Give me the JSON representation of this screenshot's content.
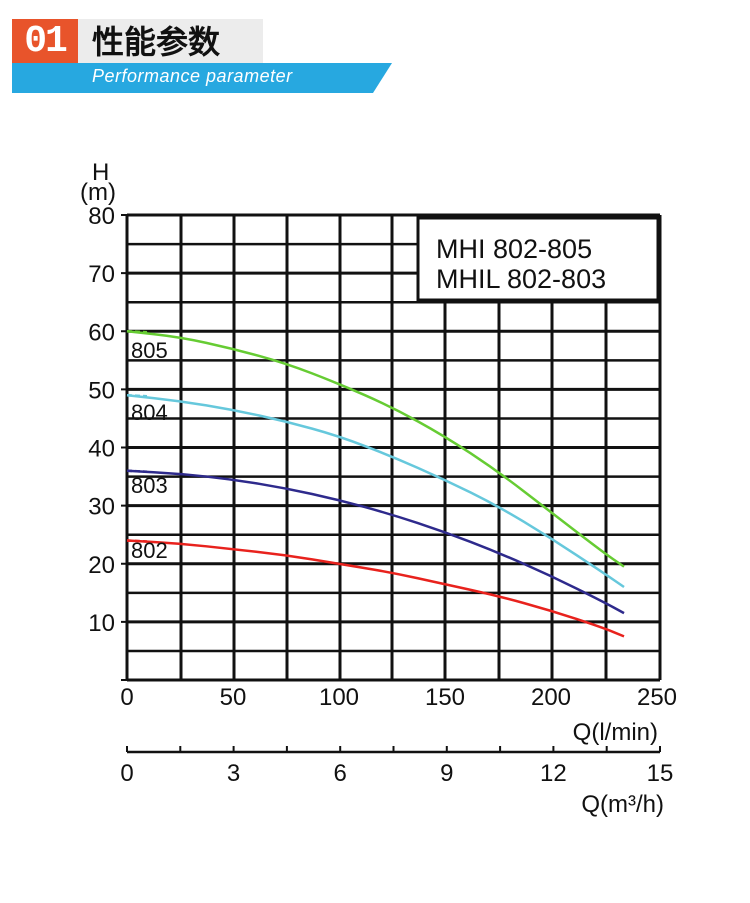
{
  "header": {
    "number": "01",
    "title": "性能参数",
    "subtitle": "Performance parameter"
  },
  "colors": {
    "badge": "#e8542b",
    "band": "#27a8e0",
    "series_805": "#66cc33",
    "series_804": "#66c8dc",
    "series_803": "#2e2a8c",
    "series_802": "#e8221d"
  },
  "chart_data": {
    "type": "line",
    "title": "",
    "model_lines": [
      "MHI   802-805",
      "MHIL  802-803"
    ],
    "ylabel_top": "H",
    "ylabel_unit": "(m)",
    "xlabel": "Q(l/min)",
    "x2label": "Q(m³/h)",
    "ylim": [
      0,
      80
    ],
    "xlim": [
      0,
      250
    ],
    "y_ticks": [
      "80",
      "70",
      "60",
      "50",
      "40",
      "30",
      "20",
      "10"
    ],
    "x_ticks": [
      "0",
      "50",
      "100",
      "150",
      "200",
      "250"
    ],
    "x2_ticks": [
      "0",
      "3",
      "6",
      "9",
      "12",
      "15"
    ],
    "series": [
      {
        "name": "805",
        "label": "805",
        "color": "#66cc33",
        "x": [
          0,
          25,
          50,
          75,
          100,
          125,
          150,
          175,
          200,
          225,
          235
        ],
        "y": [
          60,
          59,
          57,
          54.5,
          51,
          47,
          42,
          36,
          29,
          22,
          19.5
        ]
      },
      {
        "name": "804",
        "label": "804",
        "color": "#66c8dc",
        "x": [
          0,
          25,
          50,
          75,
          100,
          125,
          150,
          175,
          200,
          225,
          235
        ],
        "y": [
          49,
          48,
          46.5,
          44.5,
          42,
          38.5,
          34.5,
          30,
          24.5,
          18.5,
          16
        ]
      },
      {
        "name": "803",
        "label": "803",
        "color": "#2e2a8c",
        "x": [
          0,
          25,
          50,
          75,
          100,
          125,
          150,
          175,
          200,
          225,
          235
        ],
        "y": [
          36,
          35.5,
          34.5,
          33,
          31,
          28.5,
          25.5,
          22,
          18,
          13.5,
          11.5
        ]
      },
      {
        "name": "802",
        "label": "802",
        "color": "#e8221d",
        "x": [
          0,
          25,
          50,
          75,
          100,
          125,
          150,
          175,
          200,
          225,
          235
        ],
        "y": [
          24,
          23.5,
          22.5,
          21.5,
          20,
          18.5,
          16.5,
          14.5,
          12,
          9,
          7.5
        ]
      }
    ]
  }
}
